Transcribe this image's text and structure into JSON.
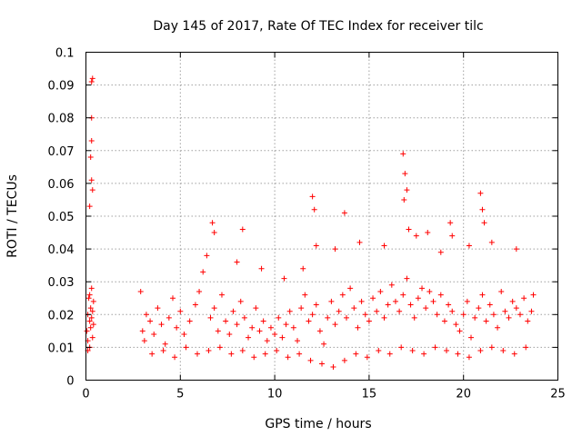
{
  "chart_data": {
    "type": "scatter",
    "title": "Day 145 of 2017, Rate Of TEC Index for receiver tilc",
    "xlabel": "GPS time / hours",
    "ylabel": "ROTI / TECUs",
    "xlim": [
      0,
      25
    ],
    "ylim": [
      0,
      0.1
    ],
    "x_ticks": [
      0,
      5,
      10,
      15,
      20,
      25
    ],
    "x_tick_labels": [
      "0",
      "5",
      "10",
      "15",
      "20",
      "25"
    ],
    "y_ticks": [
      0,
      0.01,
      0.02,
      0.03,
      0.04,
      0.05,
      0.06,
      0.07,
      0.08,
      0.09,
      0.1
    ],
    "y_tick_labels": [
      "0",
      "0.01",
      "0.02",
      "0.03",
      "0.04",
      "0.05",
      "0.06",
      "0.07",
      "0.08",
      "0.09",
      "0.1"
    ],
    "grid": true,
    "marker": "plus",
    "color": "#ff0000",
    "series": [
      {
        "name": "ROTI",
        "x": [
          0.05,
          0.1,
          0.1,
          0.15,
          0.2,
          0.2,
          0.25,
          0.25,
          0.3,
          0.3,
          0.35,
          0.35,
          0.4,
          0.4,
          0.1,
          0.2,
          0.3,
          0.35,
          0.3,
          0.25,
          0.3,
          0.35,
          0.2,
          0.3,
          2.9,
          3.0,
          3.1,
          3.2,
          3.4,
          3.6,
          3.8,
          4.0,
          4.2,
          4.4,
          4.6,
          4.8,
          5.0,
          5.2,
          5.5,
          5.8,
          6.0,
          6.2,
          6.4,
          6.6,
          6.8,
          7.0,
          7.2,
          7.4,
          7.6,
          7.8,
          8.0,
          8.2,
          8.4,
          8.6,
          8.8,
          9.0,
          9.2,
          9.4,
          9.6,
          9.8,
          10.0,
          10.2,
          10.4,
          10.6,
          10.8,
          11.0,
          11.2,
          11.4,
          11.6,
          11.8,
          12.0,
          12.2,
          12.4,
          12.6,
          12.8,
          13.0,
          13.2,
          13.4,
          13.6,
          13.8,
          14.0,
          14.2,
          14.4,
          14.6,
          14.8,
          15.0,
          15.2,
          15.4,
          15.6,
          15.8,
          16.0,
          16.2,
          16.4,
          16.6,
          16.8,
          17.0,
          17.2,
          17.4,
          17.6,
          17.8,
          18.0,
          18.2,
          18.4,
          18.6,
          18.8,
          19.0,
          19.2,
          19.4,
          19.6,
          19.8,
          20.0,
          20.2,
          20.4,
          20.6,
          20.8,
          21.0,
          21.2,
          21.4,
          21.6,
          21.8,
          22.0,
          22.2,
          22.4,
          22.6,
          22.8,
          23.0,
          23.2,
          23.4,
          23.6,
          23.7,
          6.7,
          6.8,
          8.3,
          12.0,
          12.1,
          13.7,
          16.8,
          16.9,
          16.85,
          17.0,
          17.1,
          19.3,
          19.4,
          20.9,
          21.0,
          21.1,
          21.5,
          12.2,
          13.2,
          14.5,
          15.8,
          17.5,
          18.1,
          18.8,
          20.3,
          22.8,
          11.5,
          8.0,
          9.3,
          10.5,
          3.5,
          4.1,
          4.7,
          5.3,
          5.9,
          6.5,
          7.1,
          7.7,
          8.3,
          8.9,
          9.5,
          10.1,
          10.7,
          11.3,
          11.9,
          12.5,
          13.1,
          13.7,
          14.3,
          14.9,
          15.5,
          16.1,
          16.7,
          17.3,
          17.9,
          18.5,
          19.1,
          19.7,
          20.3,
          20.9,
          21.5,
          22.1,
          22.7,
          23.3
        ],
        "y": [
          0.015,
          0.02,
          0.012,
          0.025,
          0.018,
          0.01,
          0.022,
          0.016,
          0.028,
          0.019,
          0.013,
          0.021,
          0.017,
          0.024,
          0.009,
          0.026,
          0.091,
          0.092,
          0.073,
          0.068,
          0.061,
          0.058,
          0.053,
          0.08,
          0.027,
          0.015,
          0.012,
          0.02,
          0.018,
          0.014,
          0.022,
          0.017,
          0.011,
          0.019,
          0.025,
          0.016,
          0.021,
          0.014,
          0.018,
          0.023,
          0.027,
          0.033,
          0.038,
          0.019,
          0.022,
          0.015,
          0.026,
          0.018,
          0.014,
          0.021,
          0.017,
          0.024,
          0.019,
          0.013,
          0.016,
          0.022,
          0.015,
          0.018,
          0.012,
          0.016,
          0.014,
          0.019,
          0.013,
          0.017,
          0.021,
          0.016,
          0.012,
          0.022,
          0.026,
          0.018,
          0.02,
          0.023,
          0.015,
          0.011,
          0.019,
          0.024,
          0.017,
          0.021,
          0.026,
          0.019,
          0.028,
          0.022,
          0.016,
          0.024,
          0.02,
          0.018,
          0.025,
          0.021,
          0.027,
          0.019,
          0.023,
          0.029,
          0.024,
          0.021,
          0.026,
          0.031,
          0.023,
          0.019,
          0.025,
          0.028,
          0.022,
          0.027,
          0.024,
          0.02,
          0.026,
          0.018,
          0.023,
          0.021,
          0.017,
          0.015,
          0.02,
          0.024,
          0.013,
          0.019,
          0.022,
          0.026,
          0.018,
          0.023,
          0.02,
          0.016,
          0.027,
          0.021,
          0.019,
          0.024,
          0.022,
          0.02,
          0.025,
          0.018,
          0.021,
          0.026,
          0.048,
          0.045,
          0.046,
          0.056,
          0.052,
          0.051,
          0.069,
          0.063,
          0.055,
          0.058,
          0.046,
          0.048,
          0.044,
          0.057,
          0.052,
          0.048,
          0.042,
          0.041,
          0.04,
          0.042,
          0.041,
          0.044,
          0.045,
          0.039,
          0.041,
          0.04,
          0.034,
          0.036,
          0.034,
          0.031,
          0.008,
          0.009,
          0.007,
          0.01,
          0.008,
          0.009,
          0.01,
          0.008,
          0.009,
          0.007,
          0.008,
          0.009,
          0.007,
          0.008,
          0.006,
          0.005,
          0.004,
          0.006,
          0.008,
          0.007,
          0.009,
          0.008,
          0.01,
          0.009,
          0.008,
          0.01,
          0.009,
          0.008,
          0.007,
          0.009,
          0.01,
          0.009,
          0.008,
          0.01
        ]
      }
    ]
  }
}
